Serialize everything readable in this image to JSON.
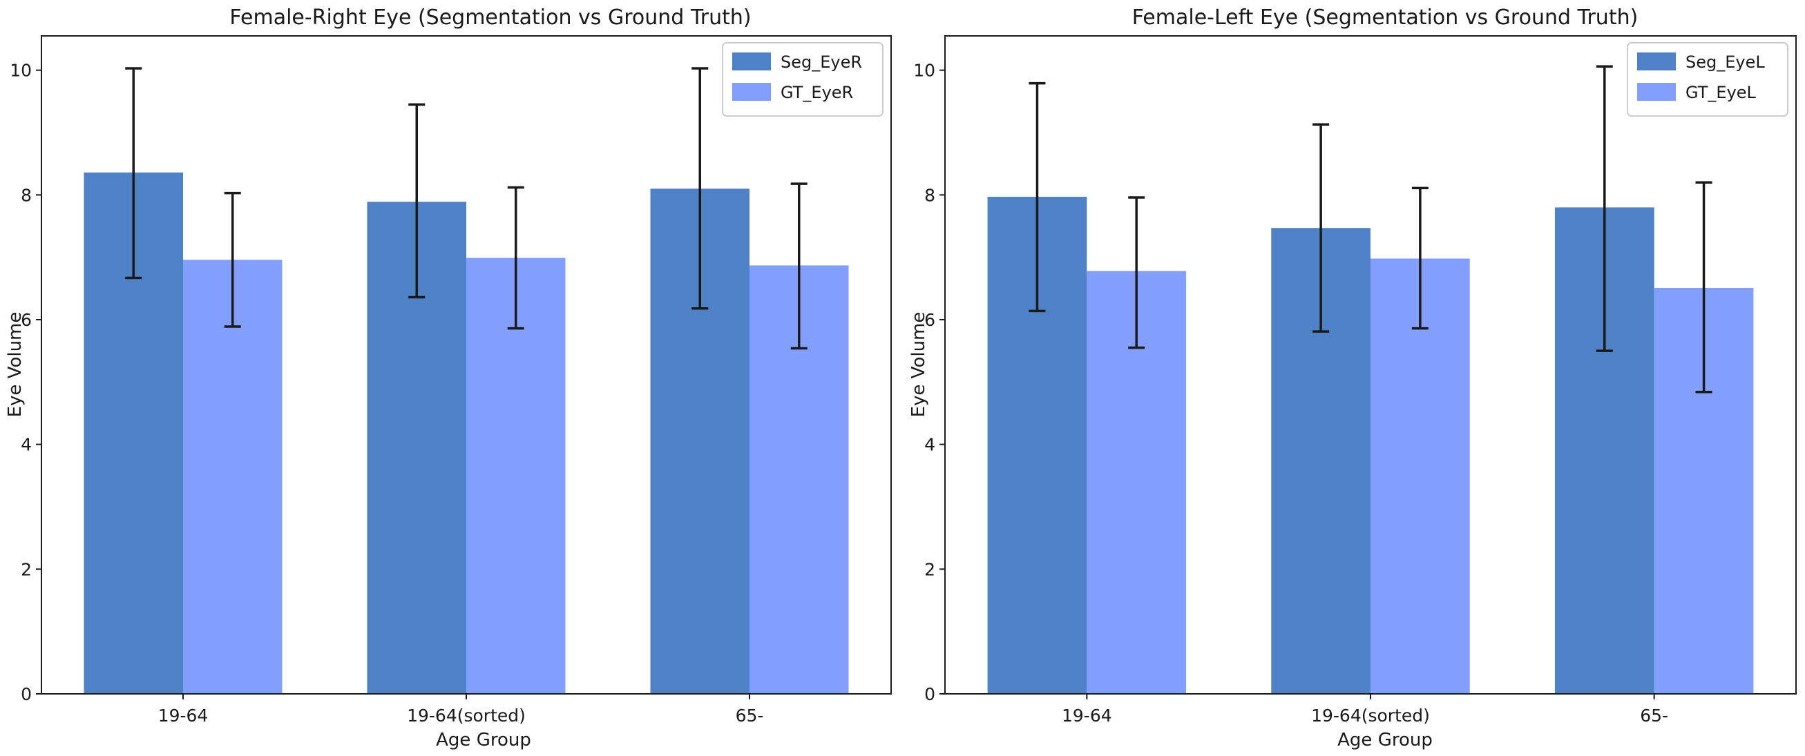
{
  "chart_data": [
    {
      "type": "bar",
      "title": "Female-Right Eye (Segmentation vs Ground Truth)",
      "xlabel": "Age Group",
      "ylabel": "Eye Volume",
      "categories": [
        "19-64",
        "19-64(sorted)",
        "65-"
      ],
      "ylim": [
        0,
        10.55
      ],
      "yticks": [
        0,
        2,
        4,
        6,
        8,
        10
      ],
      "grid": false,
      "legend_position": "top-right",
      "series": [
        {
          "name": "Seg_EyeR",
          "color": "#4f81c7",
          "values": [
            8.36,
            7.89,
            8.1
          ],
          "err_low": [
            6.67,
            6.36,
            6.18
          ],
          "err_high": [
            10.03,
            9.45,
            10.03
          ]
        },
        {
          "name": "GT_EyeR",
          "color": "#829ffd",
          "values": [
            6.96,
            6.99,
            6.87
          ],
          "err_low": [
            5.89,
            5.86,
            5.54
          ],
          "err_high": [
            8.03,
            8.12,
            8.18
          ]
        }
      ]
    },
    {
      "type": "bar",
      "title": "Female-Left Eye (Segmentation vs Ground Truth)",
      "xlabel": "Age Group",
      "ylabel": "Eye Volume",
      "categories": [
        "19-64",
        "19-64(sorted)",
        "65-"
      ],
      "ylim": [
        0,
        10.55
      ],
      "yticks": [
        0,
        2,
        4,
        6,
        8,
        10
      ],
      "grid": false,
      "legend_position": "top-right",
      "series": [
        {
          "name": "Seg_EyeL",
          "color": "#4f81c7",
          "values": [
            7.97,
            7.47,
            7.8
          ],
          "err_low": [
            6.14,
            5.81,
            5.5
          ],
          "err_high": [
            9.79,
            9.13,
            10.06
          ]
        },
        {
          "name": "GT_EyeL",
          "color": "#829ffd",
          "values": [
            6.78,
            6.98,
            6.51
          ],
          "err_low": [
            5.55,
            5.86,
            4.84
          ],
          "err_high": [
            7.96,
            8.11,
            8.2
          ]
        }
      ]
    }
  ]
}
